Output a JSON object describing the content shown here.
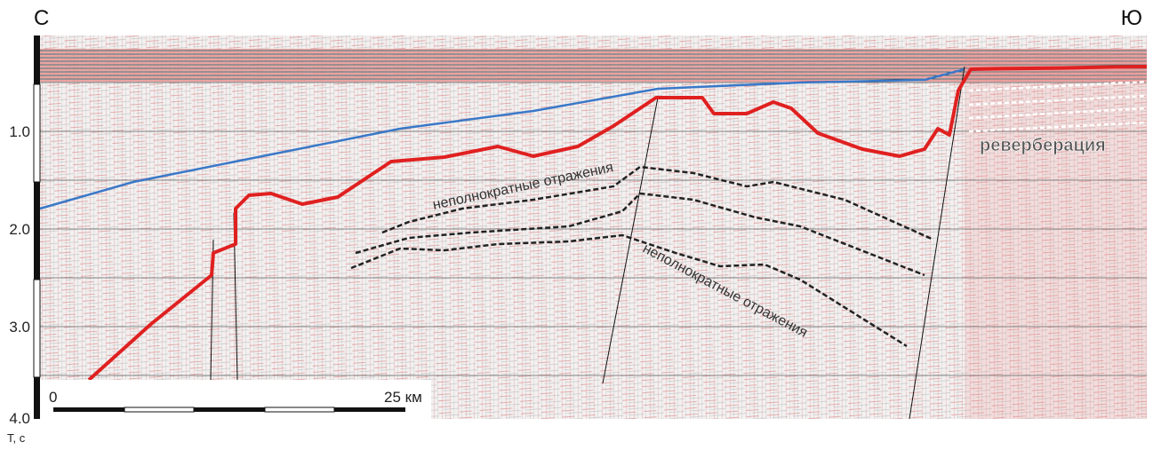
{
  "header": {
    "left": "С",
    "right": "Ю"
  },
  "axis": {
    "ticks": [
      "1.0",
      "2.0",
      "3.0",
      "4.0"
    ],
    "label": "T, c"
  },
  "annotations": {
    "reverberation": "реверберация",
    "multiples_upper": "неполнократные отражения",
    "multiples_lower": "неполнократные отражения"
  },
  "scale_bar": {
    "start": "0",
    "end": "25 км"
  }
}
